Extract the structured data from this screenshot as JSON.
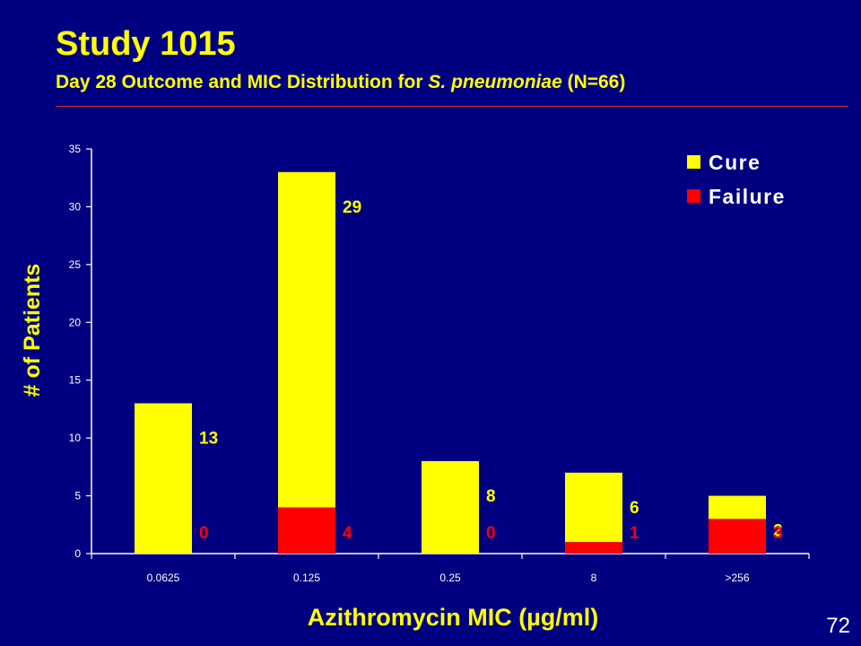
{
  "slide": {
    "title": "Study 1015",
    "subtitle_prefix": "Day 28 Outcome and MIC Distribution for ",
    "subtitle_italic": "S. pneumoniae",
    "subtitle_suffix": " (N=66)",
    "page_number": "72"
  },
  "colors": {
    "background": "#000080",
    "cure": "#FFFF00",
    "failure": "#FF0000",
    "text": "#FFFF00",
    "axis": "#FFFFFF"
  },
  "chart_data": {
    "type": "bar",
    "stacked": true,
    "categories": [
      "0.0625",
      "0.125",
      "0.25",
      "8",
      ">256"
    ],
    "series": [
      {
        "name": "Failure",
        "values": [
          0,
          4,
          0,
          1,
          3
        ]
      },
      {
        "name": "Cure",
        "values": [
          13,
          29,
          8,
          6,
          2
        ]
      }
    ],
    "xlabel": "Azithromycin MIC (µg/ml)",
    "ylabel": "# of Patients",
    "ylim": [
      0,
      35
    ],
    "yticks": [
      0,
      5,
      10,
      15,
      20,
      25,
      30,
      35
    ],
    "legend": [
      "Cure",
      "Failure"
    ],
    "legend_position": "top-right",
    "grid": false
  }
}
